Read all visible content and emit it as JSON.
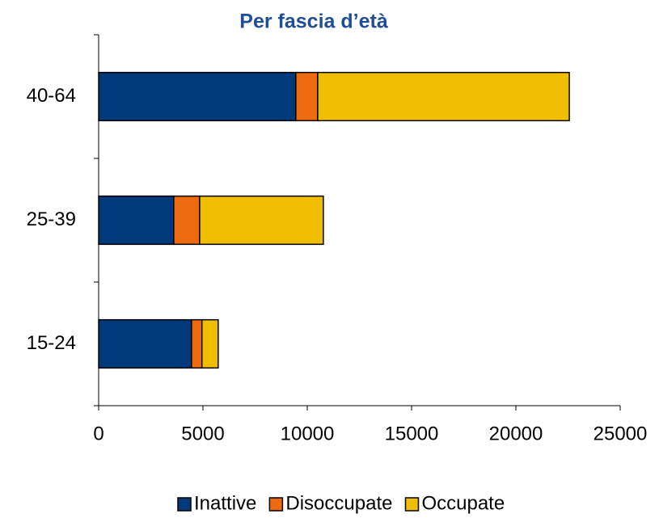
{
  "chart_data": {
    "type": "hbar-stacked",
    "title": "Per fascia d’età",
    "categories": [
      "15-24",
      "25-39",
      "40-64"
    ],
    "series": [
      {
        "name": "Inattive",
        "color": "#003a7a",
        "values": [
          4450,
          3600,
          9450
        ]
      },
      {
        "name": "Disoccupate",
        "color": "#ee6a0e",
        "values": [
          500,
          1240,
          1050
        ]
      },
      {
        "name": "Occupate",
        "color": "#f0be00",
        "values": [
          780,
          5930,
          12060
        ]
      }
    ],
    "xlim": [
      0,
      25000
    ],
    "xticks": [
      0,
      5000,
      10000,
      15000,
      20000,
      25000
    ],
    "legend": "bottom"
  }
}
